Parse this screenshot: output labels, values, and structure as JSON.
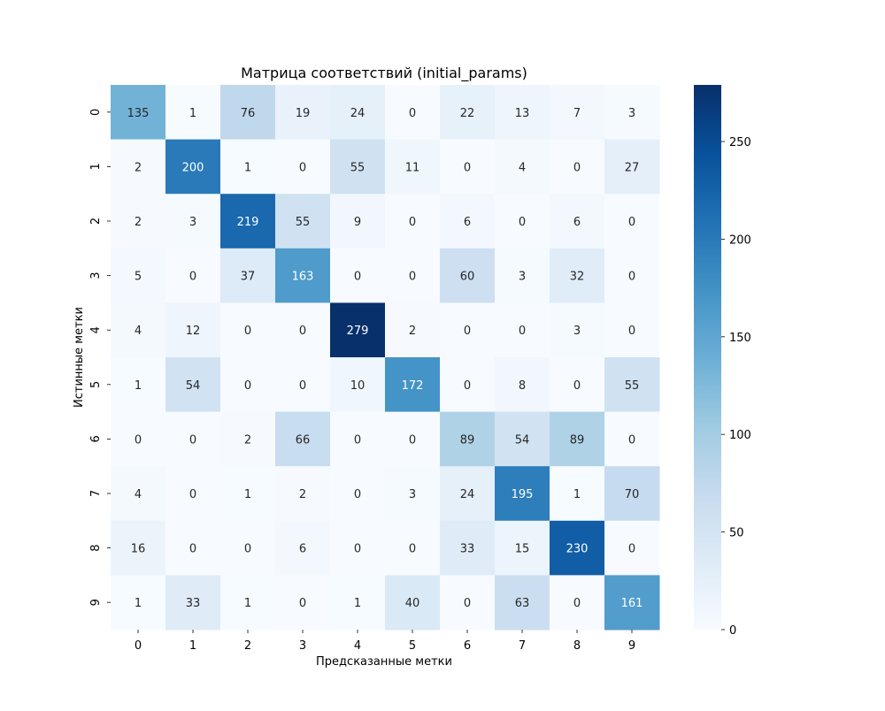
{
  "chart_data": {
    "type": "heatmap",
    "title": "Матрица соответствий (initial_params)",
    "xlabel": "Предсказанные метки",
    "ylabel": "Истинные метки",
    "x_categories": [
      "0",
      "1",
      "2",
      "3",
      "4",
      "5",
      "6",
      "7",
      "8",
      "9"
    ],
    "y_categories": [
      "0",
      "1",
      "2",
      "3",
      "4",
      "5",
      "6",
      "7",
      "8",
      "9"
    ],
    "values": [
      [
        135,
        1,
        76,
        19,
        24,
        0,
        22,
        13,
        7,
        3
      ],
      [
        2,
        200,
        1,
        0,
        55,
        11,
        0,
        4,
        0,
        27
      ],
      [
        2,
        3,
        219,
        55,
        9,
        0,
        6,
        0,
        6,
        0
      ],
      [
        5,
        0,
        37,
        163,
        0,
        0,
        60,
        3,
        32,
        0
      ],
      [
        4,
        12,
        0,
        0,
        279,
        2,
        0,
        0,
        3,
        0
      ],
      [
        1,
        54,
        0,
        0,
        10,
        172,
        0,
        8,
        0,
        55
      ],
      [
        0,
        0,
        2,
        66,
        0,
        0,
        89,
        54,
        89,
        0
      ],
      [
        4,
        0,
        1,
        2,
        0,
        3,
        24,
        195,
        1,
        70
      ],
      [
        16,
        0,
        0,
        6,
        0,
        0,
        33,
        15,
        230,
        0
      ],
      [
        1,
        33,
        1,
        0,
        1,
        40,
        0,
        63,
        0,
        161
      ]
    ],
    "colormap": "Blues",
    "colorbar": {
      "min": 0,
      "max": 279,
      "ticks": [
        0,
        50,
        100,
        150,
        200,
        250
      ]
    },
    "colors": {
      "low": "#f7fbff",
      "high": "#08306b",
      "text_dark": "#262626",
      "text_light": "#ffffff"
    },
    "grid": false
  }
}
